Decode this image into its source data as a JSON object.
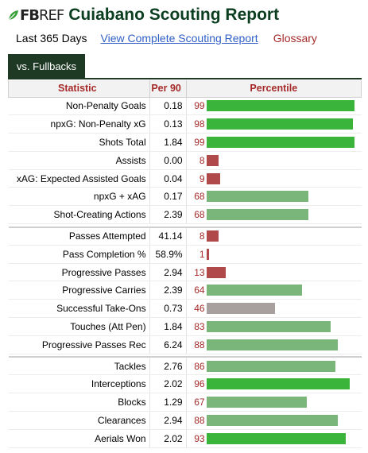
{
  "header": {
    "logo_fb": "FB",
    "logo_ref": "REF",
    "logo_icon": "fbref-leaf-icon",
    "title": "Cuiabano Scouting Report"
  },
  "subnav": {
    "period": "Last 365 Days",
    "complete_link": "View Complete Scouting Report",
    "glossary": "Glossary"
  },
  "tab": {
    "label": "vs. Fullbacks"
  },
  "colors": {
    "elite": "#3ab43a",
    "good": "#7ab57a",
    "average": "#a89f9f",
    "poor": "#b04a4a",
    "title": "#0b3d20",
    "tab": "#1f3a24"
  },
  "table": {
    "headers": [
      "Statistic",
      "Per 90",
      "Percentile"
    ],
    "groups": [
      [
        {
          "stat": "Non-Penalty Goals",
          "per90": "0.18",
          "pct": 99
        },
        {
          "stat": "npxG: Non-Penalty xG",
          "per90": "0.13",
          "pct": 98
        },
        {
          "stat": "Shots Total",
          "per90": "1.84",
          "pct": 99
        },
        {
          "stat": "Assists",
          "per90": "0.00",
          "pct": 8
        },
        {
          "stat": "xAG: Expected Assisted Goals",
          "per90": "0.04",
          "pct": 9
        },
        {
          "stat": "npxG + xAG",
          "per90": "0.17",
          "pct": 68
        },
        {
          "stat": "Shot-Creating Actions",
          "per90": "2.39",
          "pct": 68
        }
      ],
      [
        {
          "stat": "Passes Attempted",
          "per90": "41.14",
          "pct": 8
        },
        {
          "stat": "Pass Completion %",
          "per90": "58.9%",
          "pct": 1
        },
        {
          "stat": "Progressive Passes",
          "per90": "2.94",
          "pct": 13
        },
        {
          "stat": "Progressive Carries",
          "per90": "2.39",
          "pct": 64
        },
        {
          "stat": "Successful Take-Ons",
          "per90": "0.73",
          "pct": 46
        },
        {
          "stat": "Touches (Att Pen)",
          "per90": "1.84",
          "pct": 83
        },
        {
          "stat": "Progressive Passes Rec",
          "per90": "6.24",
          "pct": 88
        }
      ],
      [
        {
          "stat": "Tackles",
          "per90": "2.76",
          "pct": 86
        },
        {
          "stat": "Interceptions",
          "per90": "2.02",
          "pct": 96
        },
        {
          "stat": "Blocks",
          "per90": "1.29",
          "pct": 67
        },
        {
          "stat": "Clearances",
          "per90": "2.94",
          "pct": 88
        },
        {
          "stat": "Aerials Won",
          "per90": "2.02",
          "pct": 93
        }
      ]
    ]
  }
}
